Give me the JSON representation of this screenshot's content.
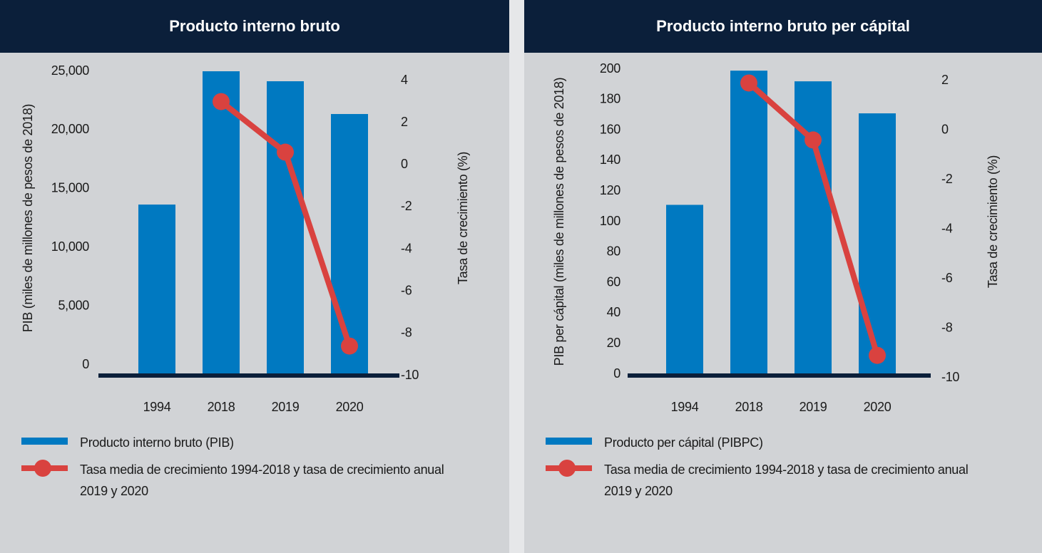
{
  "chart_data": [
    {
      "type": "bar",
      "title": "Producto interno bruto",
      "categories": [
        "1994",
        "2018",
        "2019",
        "2020"
      ],
      "ylabel": "PIB (miles de millones de pesos de 2018)",
      "y2label": "Tasa de crecimiento (%)",
      "ylim": [
        0,
        25000
      ],
      "yticks": [
        0,
        {
          "value": 5000,
          "label": "5,000"
        },
        {
          "value": 10000,
          "label": "10,000"
        },
        {
          "value": 15000,
          "label": "15,000"
        },
        {
          "value": 20000,
          "label": "20,000"
        },
        {
          "value": 25000,
          "label": "25,000"
        }
      ],
      "y2lim": [
        -10,
        4
      ],
      "y2ticks": [
        -10,
        -8,
        -6,
        -4,
        -2,
        0,
        2,
        4
      ],
      "series": [
        {
          "name": "Producto interno bruto (PIB)",
          "color": "#0079c1",
          "values": [
            13650,
            25000,
            24150,
            21360
          ]
        },
        {
          "name": "Tasa media de crecimiento 1994-2018 y tasa de crecimiento anual 2019 y 2020",
          "color": "#d9423f",
          "axis": "y2",
          "values": [
            null,
            3.0,
            0.6,
            -8.6
          ]
        }
      ]
    },
    {
      "type": "bar",
      "title": "Producto interno bruto per cápital",
      "categories": [
        "1994",
        "2018",
        "2019",
        "2020"
      ],
      "ylabel": "PIB per cápital (miles de millones de pesos de 2018)",
      "y2label": "Tasa de crecimiento (%)",
      "ylim": [
        0,
        200
      ],
      "yticks": [
        0,
        20,
        40,
        60,
        80,
        100,
        120,
        140,
        160,
        180,
        200
      ],
      "y2lim": [
        -10,
        2
      ],
      "y2ticks": [
        -10,
        -8,
        -6,
        -4,
        -2,
        0,
        2
      ],
      "series": [
        {
          "name": "Producto per cápital (PIBPC)",
          "color": "#0079c1",
          "values": [
            111,
            199,
            192,
            171
          ]
        },
        {
          "name": "Tasa media de crecimiento 1994-2018 y tasa de crecimiento anual 2019 y 2020",
          "color": "#d9423f",
          "axis": "y2",
          "values": [
            null,
            1.9,
            -0.4,
            -9.1
          ]
        }
      ]
    }
  ]
}
